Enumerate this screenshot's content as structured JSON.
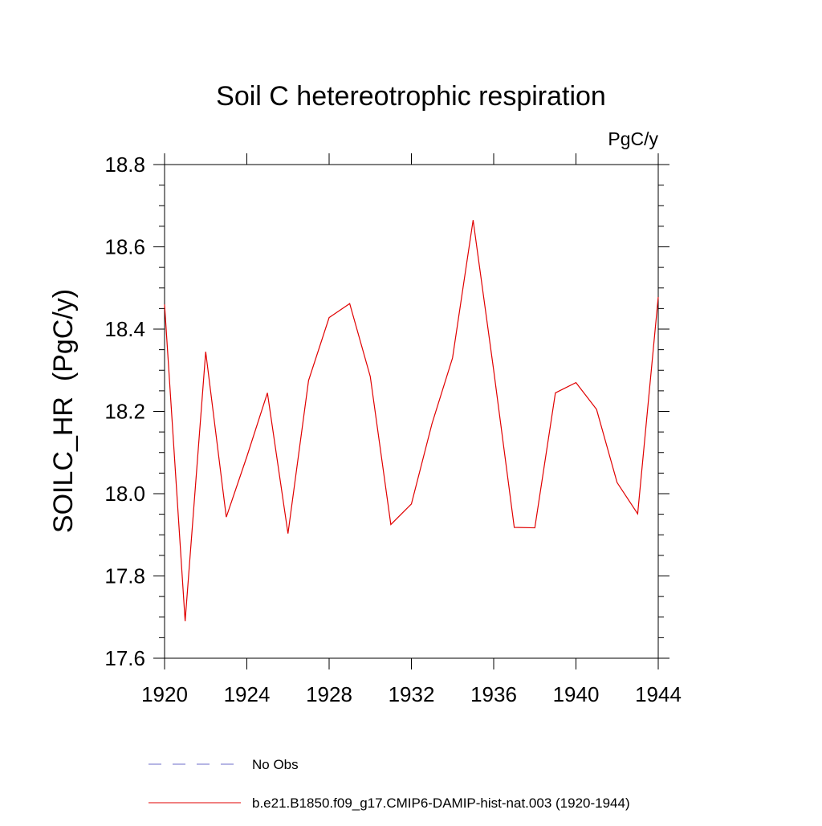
{
  "chart_data": {
    "type": "line",
    "title": "Soil C hetereotrophic respiration",
    "units_label": "PgC/y",
    "ylabel": "SOILC_HR  (PgC/y)",
    "xlabel": "",
    "xlim": [
      1920,
      1944
    ],
    "ylim": [
      17.6,
      18.8
    ],
    "x_ticks": [
      1920,
      1924,
      1928,
      1932,
      1936,
      1940,
      1944
    ],
    "x_tick_labels": [
      "1920",
      "1924",
      "1928",
      "1932",
      "1936",
      "1940",
      "1944"
    ],
    "y_ticks": [
      17.6,
      17.8,
      18.0,
      18.2,
      18.4,
      18.6,
      18.8
    ],
    "y_tick_labels": [
      "17.6",
      "17.8",
      "18.0",
      "18.2",
      "18.4",
      "18.6",
      "18.8"
    ],
    "grid": false,
    "legend_position": "bottom",
    "series": [
      {
        "name": "b.e21.B1850.f09_g17.CMIP6-DAMIP-hist-nat.003 (1920-1944)",
        "color": "#e00000",
        "style": "solid",
        "x": [
          1920,
          1921,
          1922,
          1923,
          1924,
          1925,
          1926,
          1927,
          1928,
          1929,
          1930,
          1931,
          1932,
          1933,
          1934,
          1935,
          1936,
          1937,
          1938,
          1939,
          1940,
          1941,
          1942,
          1943,
          1944
        ],
        "values": [
          18.46,
          17.69,
          18.345,
          17.943,
          18.09,
          18.245,
          17.903,
          18.275,
          18.428,
          18.462,
          18.285,
          17.925,
          17.975,
          18.17,
          18.33,
          18.665,
          18.3,
          17.918,
          17.917,
          18.245,
          18.27,
          18.205,
          18.027,
          17.951,
          18.478
        ]
      }
    ],
    "legend": [
      {
        "label": "No Obs",
        "color": "#6e6ec8",
        "style": "dashed"
      },
      {
        "label": "b.e21.B1850.f09_g17.CMIP6-DAMIP-hist-nat.003 (1920-1944)",
        "color": "#e00000",
        "style": "solid"
      }
    ]
  }
}
